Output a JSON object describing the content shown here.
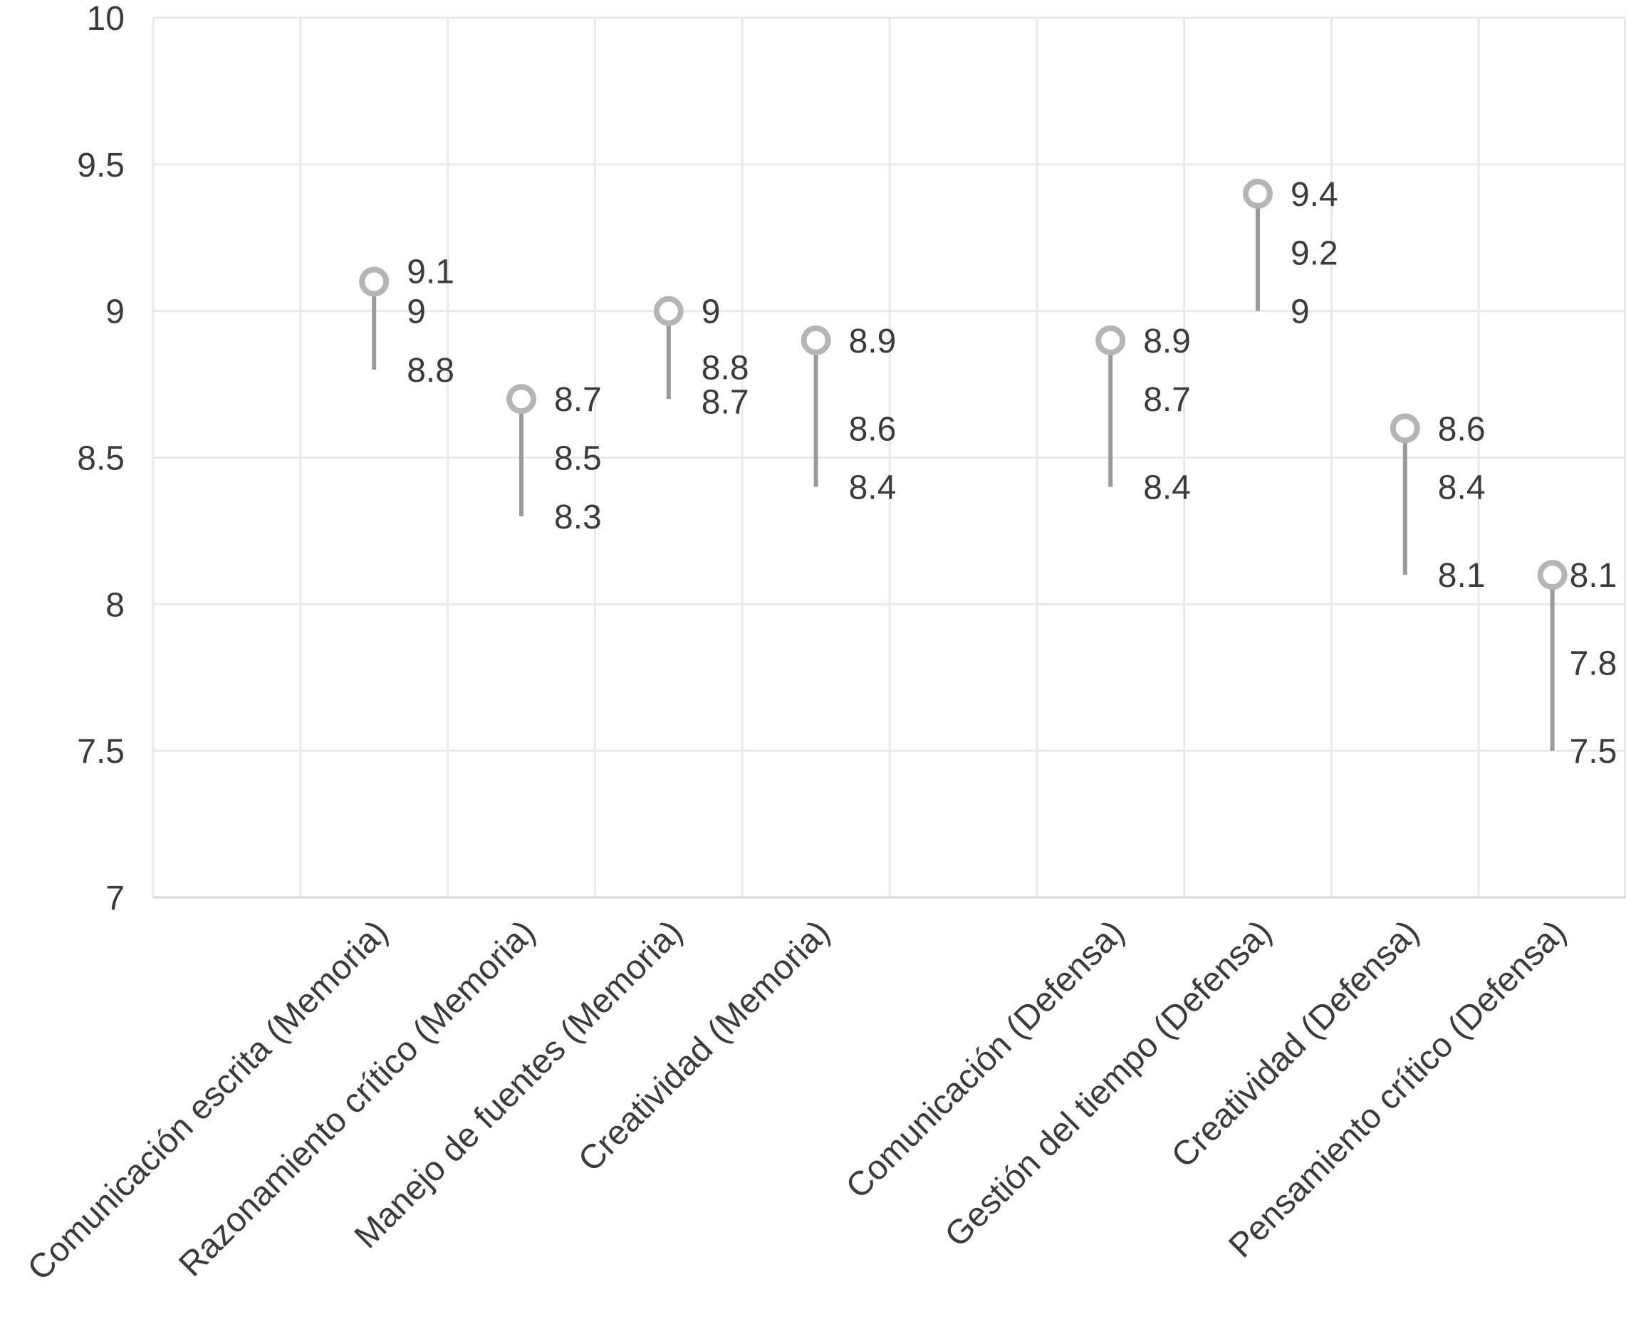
{
  "chart_data": {
    "type": "lollipop",
    "title": "",
    "xlabel": "",
    "ylabel": "",
    "ylim": [
      7,
      10
    ],
    "ytick_step": 0.5,
    "ytick_labels": [
      "10",
      "9.5",
      "9",
      "8.5",
      "8",
      "7.5",
      "7"
    ],
    "grid": true,
    "legend": "none",
    "num_slots": 10,
    "groups": [
      "Memoria",
      "Defensa"
    ],
    "categories": [
      "Comunicación escrita (Memoria)",
      "Razonamiento crítico (Memoria)",
      "Manejo de fuentes (Memoria)",
      "Creatividad (Memoria)",
      "Comunicación (Defensa)",
      "Gestión del tiempo (Defensa)",
      "Creatividad (Defensa)",
      "Pensamiento crítico (Defensa)"
    ],
    "points": [
      {
        "label": "Comunicación escrita (Memoria)",
        "slot": 1,
        "max": 9.1,
        "mean": 9.0,
        "min": 8.8,
        "value_labels": [
          "9.1",
          "9",
          "8.8"
        ]
      },
      {
        "label": "Razonamiento crítico (Memoria)",
        "slot": 2,
        "max": 8.7,
        "mean": 8.5,
        "min": 8.3,
        "value_labels": [
          "8.7",
          "8.5",
          "8.3"
        ]
      },
      {
        "label": "Manejo de fuentes (Memoria)",
        "slot": 3,
        "max": 9.0,
        "mean": 8.8,
        "min": 8.7,
        "value_labels": [
          "9",
          "8.8",
          "8.7"
        ]
      },
      {
        "label": "Creatividad (Memoria)",
        "slot": 4,
        "max": 8.9,
        "mean": 8.6,
        "min": 8.4,
        "value_labels": [
          "8.9",
          "8.6",
          "8.4"
        ]
      },
      {
        "label": "Comunicación (Defensa)",
        "slot": 6,
        "max": 8.9,
        "mean": 8.7,
        "min": 8.4,
        "value_labels": [
          "8.9",
          "8.7",
          "8.4"
        ]
      },
      {
        "label": "Gestión del tiempo (Defensa)",
        "slot": 7,
        "max": 9.4,
        "mean": 9.2,
        "min": 9.0,
        "value_labels": [
          "9.4",
          "9.2",
          "9"
        ]
      },
      {
        "label": "Creatividad (Defensa)",
        "slot": 8,
        "max": 8.6,
        "mean": 8.4,
        "min": 8.1,
        "value_labels": [
          "8.6",
          "8.4",
          "8.1"
        ]
      },
      {
        "label": "Pensamiento crítico (Defensa)",
        "slot": 9,
        "max": 8.1,
        "mean": 7.8,
        "min": 7.5,
        "value_labels": [
          "8.1",
          "7.8",
          "7.5"
        ]
      }
    ],
    "colors": {
      "stem": "#9a9a9c",
      "marker_ring": "#b5b5b7",
      "marker_fill": "#ffffff",
      "grid": "#e8e9e9",
      "axis_line": "#d6d7d7",
      "text": "#3b3b3b"
    }
  }
}
